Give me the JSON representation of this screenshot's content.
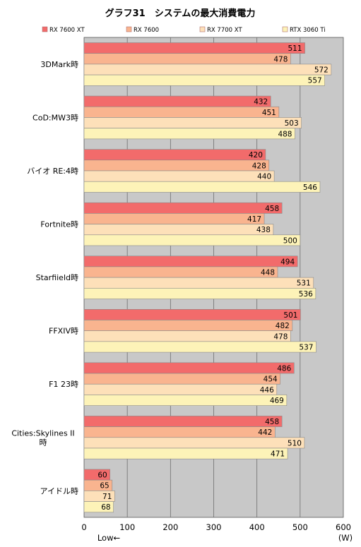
{
  "chart_data": {
    "type": "bar",
    "orientation": "horizontal",
    "title": "グラフ31　システムの最大消費電力",
    "unit_label": "(W)",
    "direction_label": "Low←",
    "xlim": [
      0,
      600
    ],
    "xticks": [
      0,
      100,
      200,
      300,
      400,
      500,
      600
    ],
    "grid": true,
    "legend_position": "top",
    "categories": [
      [
        "3DMark時"
      ],
      [
        "CoD:MW3時"
      ],
      [
        "バイオ RE:4時"
      ],
      [
        "Fortnite時"
      ],
      [
        "Starfiield時"
      ],
      [
        "FFXIV時"
      ],
      [
        "F1 23時"
      ],
      [
        "Cities:Skylines II",
        "時"
      ],
      [
        "アイドル時"
      ]
    ],
    "series": [
      {
        "name": "RX 7600 XT",
        "color": "#f26b6b",
        "values": [
          511,
          432,
          420,
          458,
          494,
          501,
          486,
          458,
          60
        ]
      },
      {
        "name": "RX 7600",
        "color": "#f9b48f",
        "values": [
          478,
          451,
          428,
          417,
          448,
          482,
          454,
          442,
          65
        ]
      },
      {
        "name": "RX 7700 XT",
        "color": "#fde0b9",
        "values": [
          572,
          503,
          440,
          438,
          531,
          478,
          446,
          510,
          71
        ]
      },
      {
        "name": "RTX 3060 Ti",
        "color": "#fdf3b8",
        "values": [
          557,
          488,
          546,
          500,
          536,
          537,
          469,
          471,
          68
        ]
      }
    ],
    "colors": {
      "plot_background": "#c8c8c8",
      "bar_border": "#8a8a8a"
    }
  }
}
